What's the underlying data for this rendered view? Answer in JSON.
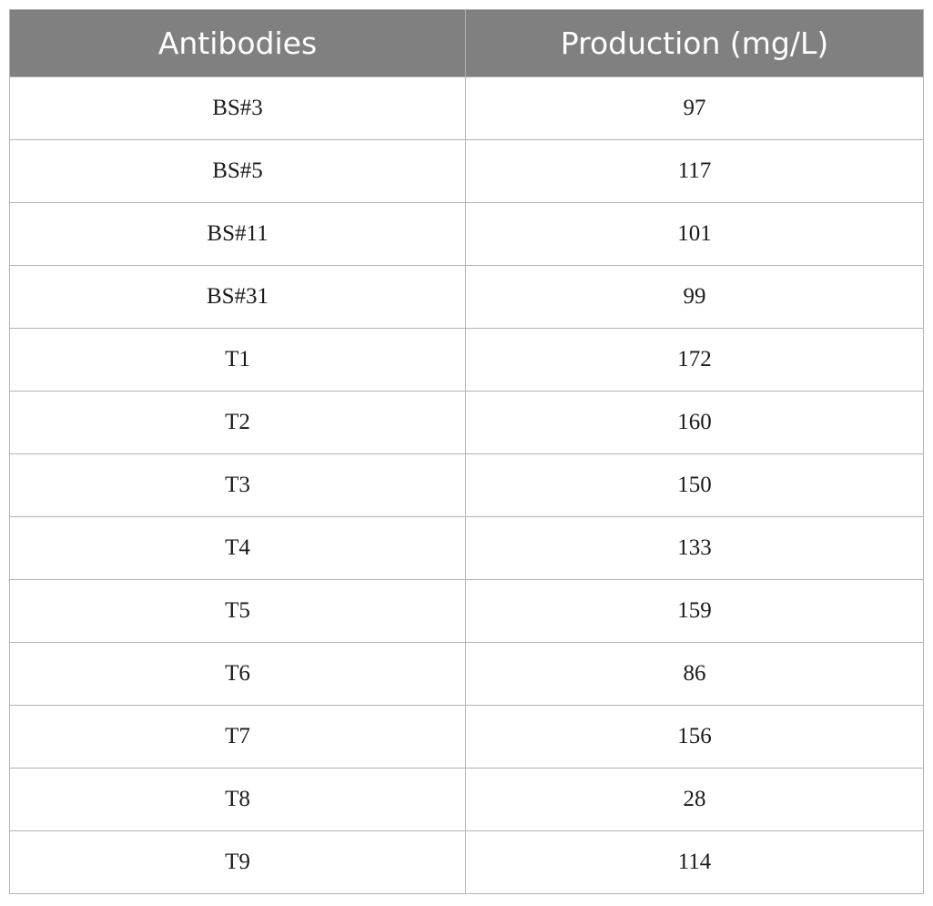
{
  "table": {
    "headers": [
      "Antibodies",
      "Production (mg/L)"
    ],
    "rows": [
      [
        "BS#3",
        "97"
      ],
      [
        "BS#5",
        "117"
      ],
      [
        "BS#11",
        "101"
      ],
      [
        "BS#31",
        "99"
      ],
      [
        "T1",
        "172"
      ],
      [
        "T2",
        "160"
      ],
      [
        "T3",
        "150"
      ],
      [
        "T4",
        "133"
      ],
      [
        "T5",
        "159"
      ],
      [
        "T6",
        "86"
      ],
      [
        "T7",
        "156"
      ],
      [
        "T8",
        "28"
      ],
      [
        "T9",
        "114"
      ]
    ]
  },
  "colors": {
    "header_bg": "#808080",
    "header_text": "#ffffff",
    "border": "#b3b3b3"
  }
}
